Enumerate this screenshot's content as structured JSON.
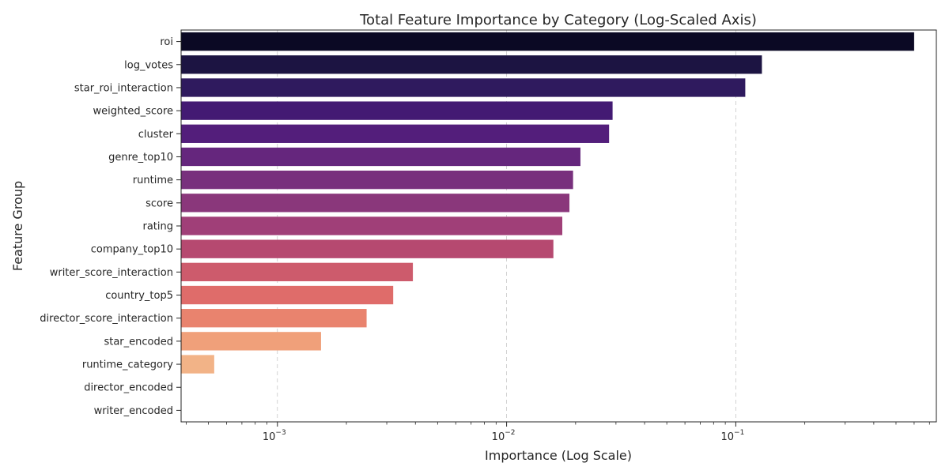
{
  "chart_data": {
    "type": "bar",
    "orientation": "horizontal",
    "title": "Total Feature Importance by Category (Log-Scaled Axis)",
    "xlabel": "Importance (Log Scale)",
    "ylabel": "Feature Group",
    "xscale": "log",
    "xlim": [
      0.00038,
      0.75
    ],
    "x_ticks": [
      {
        "base": "10",
        "exp": "−3",
        "value": 0.001
      },
      {
        "base": "10",
        "exp": "−2",
        "value": 0.01
      },
      {
        "base": "10",
        "exp": "−1",
        "value": 0.1
      }
    ],
    "grid": {
      "x": true,
      "y": false,
      "style": "dashed"
    },
    "categories": [
      "roi",
      "log_votes",
      "star_roi_interaction",
      "weighted_score",
      "cluster",
      "genre_top10",
      "runtime",
      "score",
      "rating",
      "company_top10",
      "writer_score_interaction",
      "country_top5",
      "director_score_interaction",
      "star_encoded",
      "runtime_category",
      "director_encoded",
      "writer_encoded"
    ],
    "values": [
      0.6,
      0.13,
      0.11,
      0.029,
      0.028,
      0.021,
      0.0195,
      0.0188,
      0.0175,
      0.016,
      0.0039,
      0.0032,
      0.00245,
      0.00155,
      0.00053,
      0.0003,
      0.0003
    ],
    "colors": [
      "#0b0924",
      "#1c1442",
      "#2f1a5e",
      "#431a73",
      "#531e7b",
      "#65267d",
      "#78307d",
      "#8a377b",
      "#a03f78",
      "#b64970",
      "#cd5b6c",
      "#df6c6a",
      "#e9836e",
      "#f0a07a",
      "#f2b387",
      "#f5c69a",
      "#f8d8b0"
    ]
  }
}
